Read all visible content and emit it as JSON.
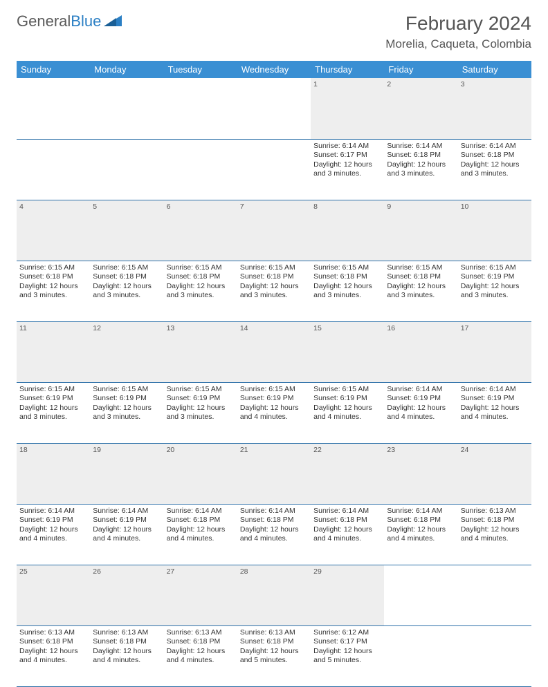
{
  "brand": {
    "part1": "General",
    "part2": "Blue"
  },
  "title": "February 2024",
  "location": "Morelia, Caqueta, Colombia",
  "colors": {
    "header_bg": "#3a8fd3",
    "header_text": "#ffffff",
    "daynum_bg": "#eeeeee",
    "border": "#2b6fa8",
    "text": "#333333",
    "brand_gray": "#5a5a5a",
    "brand_blue": "#2b7fc4"
  },
  "weekdays": [
    "Sunday",
    "Monday",
    "Tuesday",
    "Wednesday",
    "Thursday",
    "Friday",
    "Saturday"
  ],
  "weeks": [
    [
      null,
      null,
      null,
      null,
      {
        "n": "1",
        "sr": "Sunrise: 6:14 AM",
        "ss": "Sunset: 6:17 PM",
        "d1": "Daylight: 12 hours",
        "d2": "and 3 minutes."
      },
      {
        "n": "2",
        "sr": "Sunrise: 6:14 AM",
        "ss": "Sunset: 6:18 PM",
        "d1": "Daylight: 12 hours",
        "d2": "and 3 minutes."
      },
      {
        "n": "3",
        "sr": "Sunrise: 6:14 AM",
        "ss": "Sunset: 6:18 PM",
        "d1": "Daylight: 12 hours",
        "d2": "and 3 minutes."
      }
    ],
    [
      {
        "n": "4",
        "sr": "Sunrise: 6:15 AM",
        "ss": "Sunset: 6:18 PM",
        "d1": "Daylight: 12 hours",
        "d2": "and 3 minutes."
      },
      {
        "n": "5",
        "sr": "Sunrise: 6:15 AM",
        "ss": "Sunset: 6:18 PM",
        "d1": "Daylight: 12 hours",
        "d2": "and 3 minutes."
      },
      {
        "n": "6",
        "sr": "Sunrise: 6:15 AM",
        "ss": "Sunset: 6:18 PM",
        "d1": "Daylight: 12 hours",
        "d2": "and 3 minutes."
      },
      {
        "n": "7",
        "sr": "Sunrise: 6:15 AM",
        "ss": "Sunset: 6:18 PM",
        "d1": "Daylight: 12 hours",
        "d2": "and 3 minutes."
      },
      {
        "n": "8",
        "sr": "Sunrise: 6:15 AM",
        "ss": "Sunset: 6:18 PM",
        "d1": "Daylight: 12 hours",
        "d2": "and 3 minutes."
      },
      {
        "n": "9",
        "sr": "Sunrise: 6:15 AM",
        "ss": "Sunset: 6:18 PM",
        "d1": "Daylight: 12 hours",
        "d2": "and 3 minutes."
      },
      {
        "n": "10",
        "sr": "Sunrise: 6:15 AM",
        "ss": "Sunset: 6:19 PM",
        "d1": "Daylight: 12 hours",
        "d2": "and 3 minutes."
      }
    ],
    [
      {
        "n": "11",
        "sr": "Sunrise: 6:15 AM",
        "ss": "Sunset: 6:19 PM",
        "d1": "Daylight: 12 hours",
        "d2": "and 3 minutes."
      },
      {
        "n": "12",
        "sr": "Sunrise: 6:15 AM",
        "ss": "Sunset: 6:19 PM",
        "d1": "Daylight: 12 hours",
        "d2": "and 3 minutes."
      },
      {
        "n": "13",
        "sr": "Sunrise: 6:15 AM",
        "ss": "Sunset: 6:19 PM",
        "d1": "Daylight: 12 hours",
        "d2": "and 3 minutes."
      },
      {
        "n": "14",
        "sr": "Sunrise: 6:15 AM",
        "ss": "Sunset: 6:19 PM",
        "d1": "Daylight: 12 hours",
        "d2": "and 4 minutes."
      },
      {
        "n": "15",
        "sr": "Sunrise: 6:15 AM",
        "ss": "Sunset: 6:19 PM",
        "d1": "Daylight: 12 hours",
        "d2": "and 4 minutes."
      },
      {
        "n": "16",
        "sr": "Sunrise: 6:14 AM",
        "ss": "Sunset: 6:19 PM",
        "d1": "Daylight: 12 hours",
        "d2": "and 4 minutes."
      },
      {
        "n": "17",
        "sr": "Sunrise: 6:14 AM",
        "ss": "Sunset: 6:19 PM",
        "d1": "Daylight: 12 hours",
        "d2": "and 4 minutes."
      }
    ],
    [
      {
        "n": "18",
        "sr": "Sunrise: 6:14 AM",
        "ss": "Sunset: 6:19 PM",
        "d1": "Daylight: 12 hours",
        "d2": "and 4 minutes."
      },
      {
        "n": "19",
        "sr": "Sunrise: 6:14 AM",
        "ss": "Sunset: 6:19 PM",
        "d1": "Daylight: 12 hours",
        "d2": "and 4 minutes."
      },
      {
        "n": "20",
        "sr": "Sunrise: 6:14 AM",
        "ss": "Sunset: 6:18 PM",
        "d1": "Daylight: 12 hours",
        "d2": "and 4 minutes."
      },
      {
        "n": "21",
        "sr": "Sunrise: 6:14 AM",
        "ss": "Sunset: 6:18 PM",
        "d1": "Daylight: 12 hours",
        "d2": "and 4 minutes."
      },
      {
        "n": "22",
        "sr": "Sunrise: 6:14 AM",
        "ss": "Sunset: 6:18 PM",
        "d1": "Daylight: 12 hours",
        "d2": "and 4 minutes."
      },
      {
        "n": "23",
        "sr": "Sunrise: 6:14 AM",
        "ss": "Sunset: 6:18 PM",
        "d1": "Daylight: 12 hours",
        "d2": "and 4 minutes."
      },
      {
        "n": "24",
        "sr": "Sunrise: 6:13 AM",
        "ss": "Sunset: 6:18 PM",
        "d1": "Daylight: 12 hours",
        "d2": "and 4 minutes."
      }
    ],
    [
      {
        "n": "25",
        "sr": "Sunrise: 6:13 AM",
        "ss": "Sunset: 6:18 PM",
        "d1": "Daylight: 12 hours",
        "d2": "and 4 minutes."
      },
      {
        "n": "26",
        "sr": "Sunrise: 6:13 AM",
        "ss": "Sunset: 6:18 PM",
        "d1": "Daylight: 12 hours",
        "d2": "and 4 minutes."
      },
      {
        "n": "27",
        "sr": "Sunrise: 6:13 AM",
        "ss": "Sunset: 6:18 PM",
        "d1": "Daylight: 12 hours",
        "d2": "and 4 minutes."
      },
      {
        "n": "28",
        "sr": "Sunrise: 6:13 AM",
        "ss": "Sunset: 6:18 PM",
        "d1": "Daylight: 12 hours",
        "d2": "and 5 minutes."
      },
      {
        "n": "29",
        "sr": "Sunrise: 6:12 AM",
        "ss": "Sunset: 6:17 PM",
        "d1": "Daylight: 12 hours",
        "d2": "and 5 minutes."
      },
      null,
      null
    ]
  ]
}
